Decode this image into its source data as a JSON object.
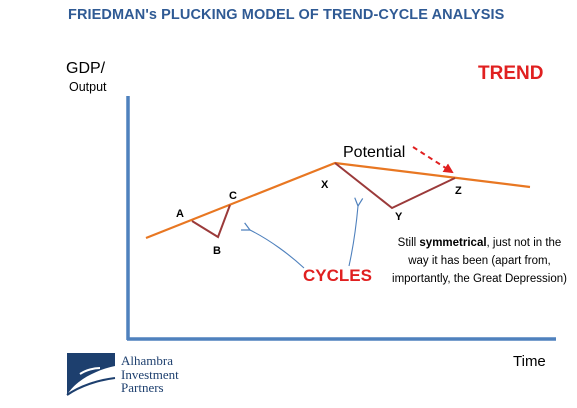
{
  "title": "FRIEDMAN's PLUCKING MODEL OF TREND-CYCLE ANALYSIS",
  "axes": {
    "y_label_line1": "GDP/",
    "y_label_line2": "Output",
    "x_label": "Time"
  },
  "trend_label": "TREND",
  "potential_label": "Potential",
  "points": {
    "a": "A",
    "b": "B",
    "c": "C",
    "x": "X",
    "y": "Y",
    "z": "Z"
  },
  "cycles_label": "CYCLES",
  "note": {
    "prefix": "Still ",
    "bold": "symmetrical",
    "suffix": ", just not in the way it has been (apart from, importantly, the Great Depression)"
  },
  "logo": {
    "line1": "Alhambra",
    "line2": "Investment",
    "line3": "Partners"
  },
  "colors": {
    "title": "#2f5a94",
    "axis": "#4f81bd",
    "trend_line": "#e87722",
    "cycle_line": "#9b3a3a",
    "accent_red": "#e02020",
    "arrow_blue": "#4f81bd"
  }
}
